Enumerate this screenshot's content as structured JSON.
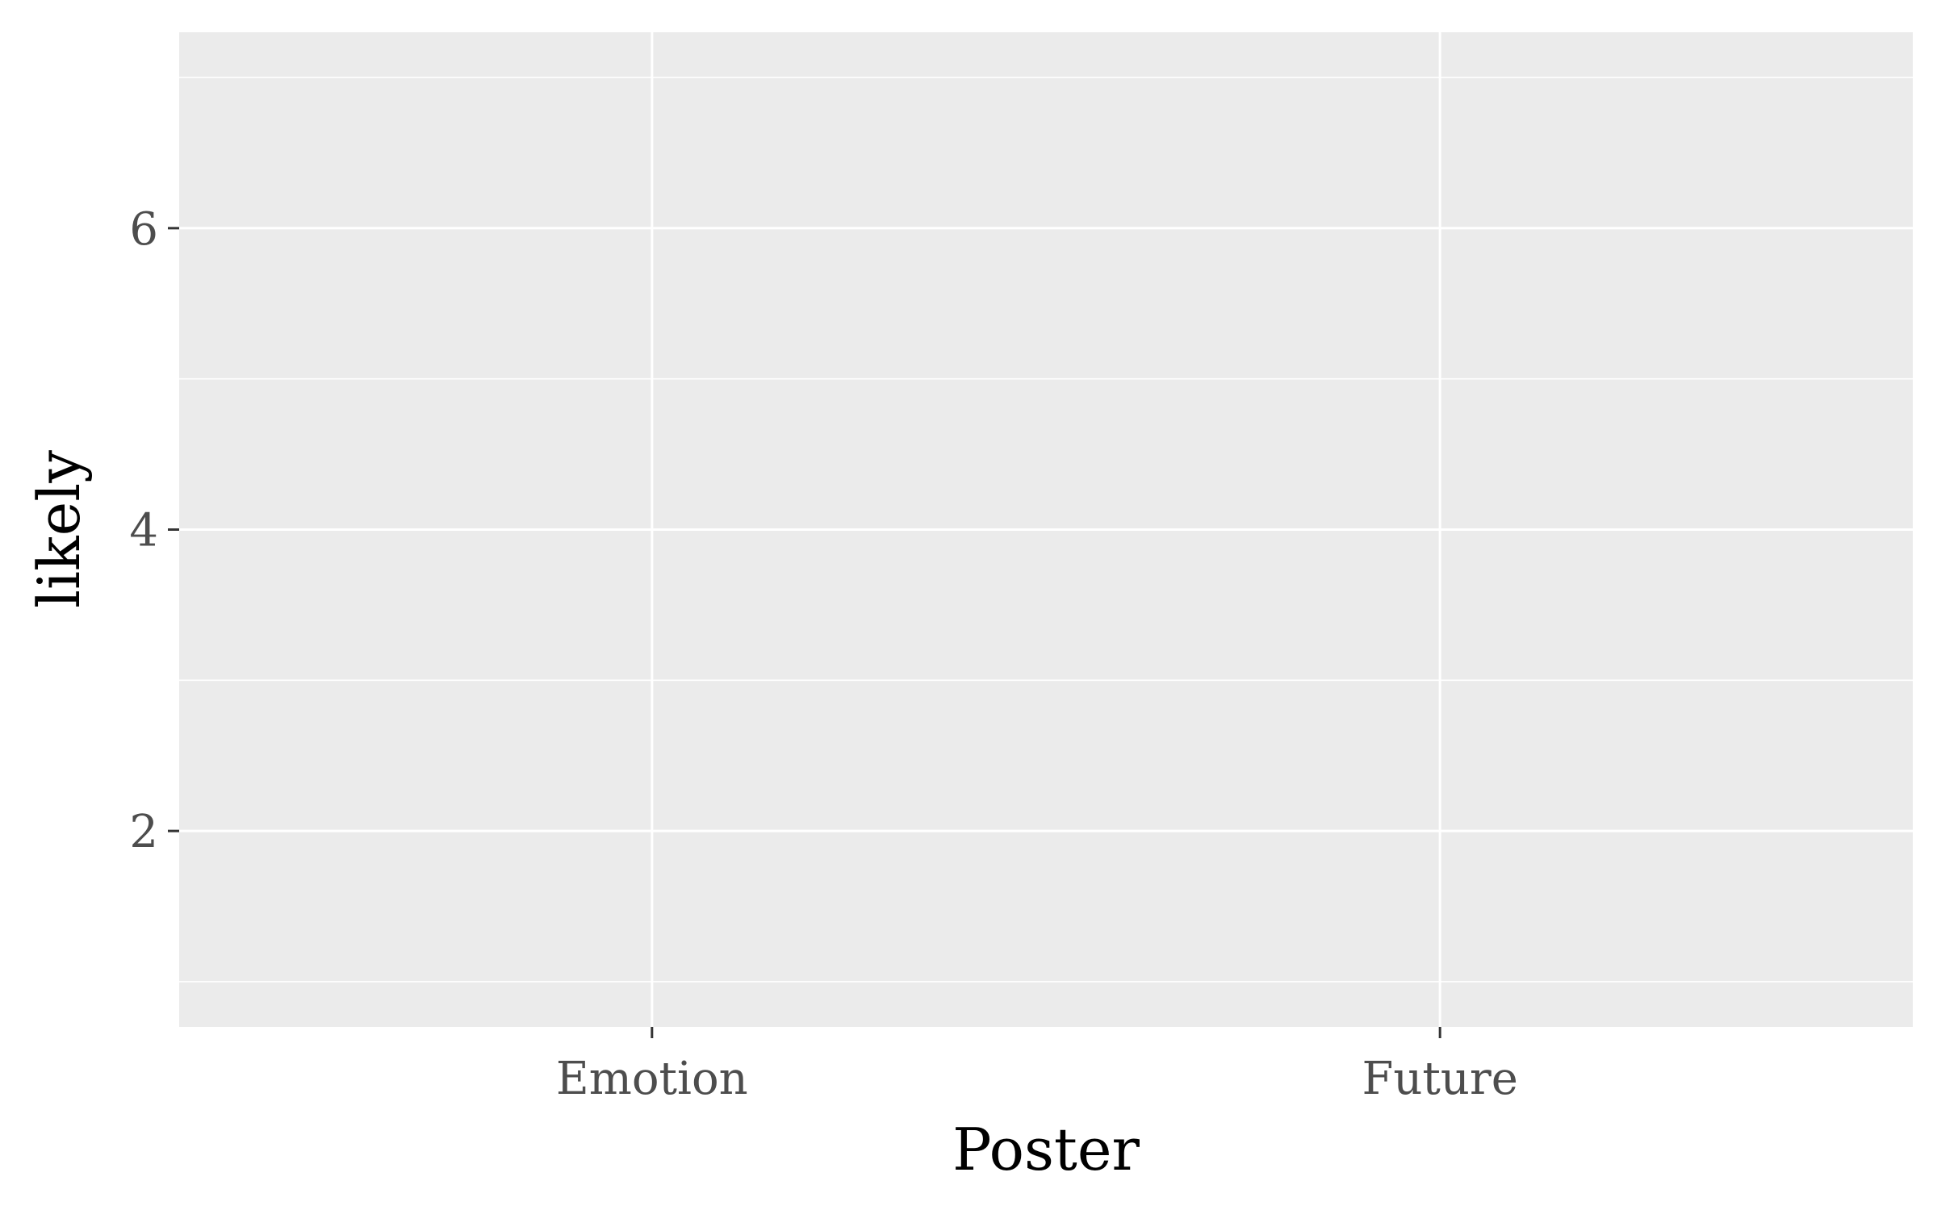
{
  "chart_data": {
    "type": "bar",
    "title": "",
    "xlabel": "Poster",
    "ylabel": "likely",
    "categories": [
      "Emotion",
      "Future"
    ],
    "y_ticks": [
      2,
      4,
      6
    ],
    "ylim": [
      0.7,
      7.3
    ],
    "grid": true,
    "series": []
  },
  "colors": {
    "panel_background": "#EBEBEB",
    "grid_line": "#FFFFFF",
    "tick_mark": "#333333",
    "tick_text": "#4D4D4D",
    "axis_title": "#000000"
  }
}
